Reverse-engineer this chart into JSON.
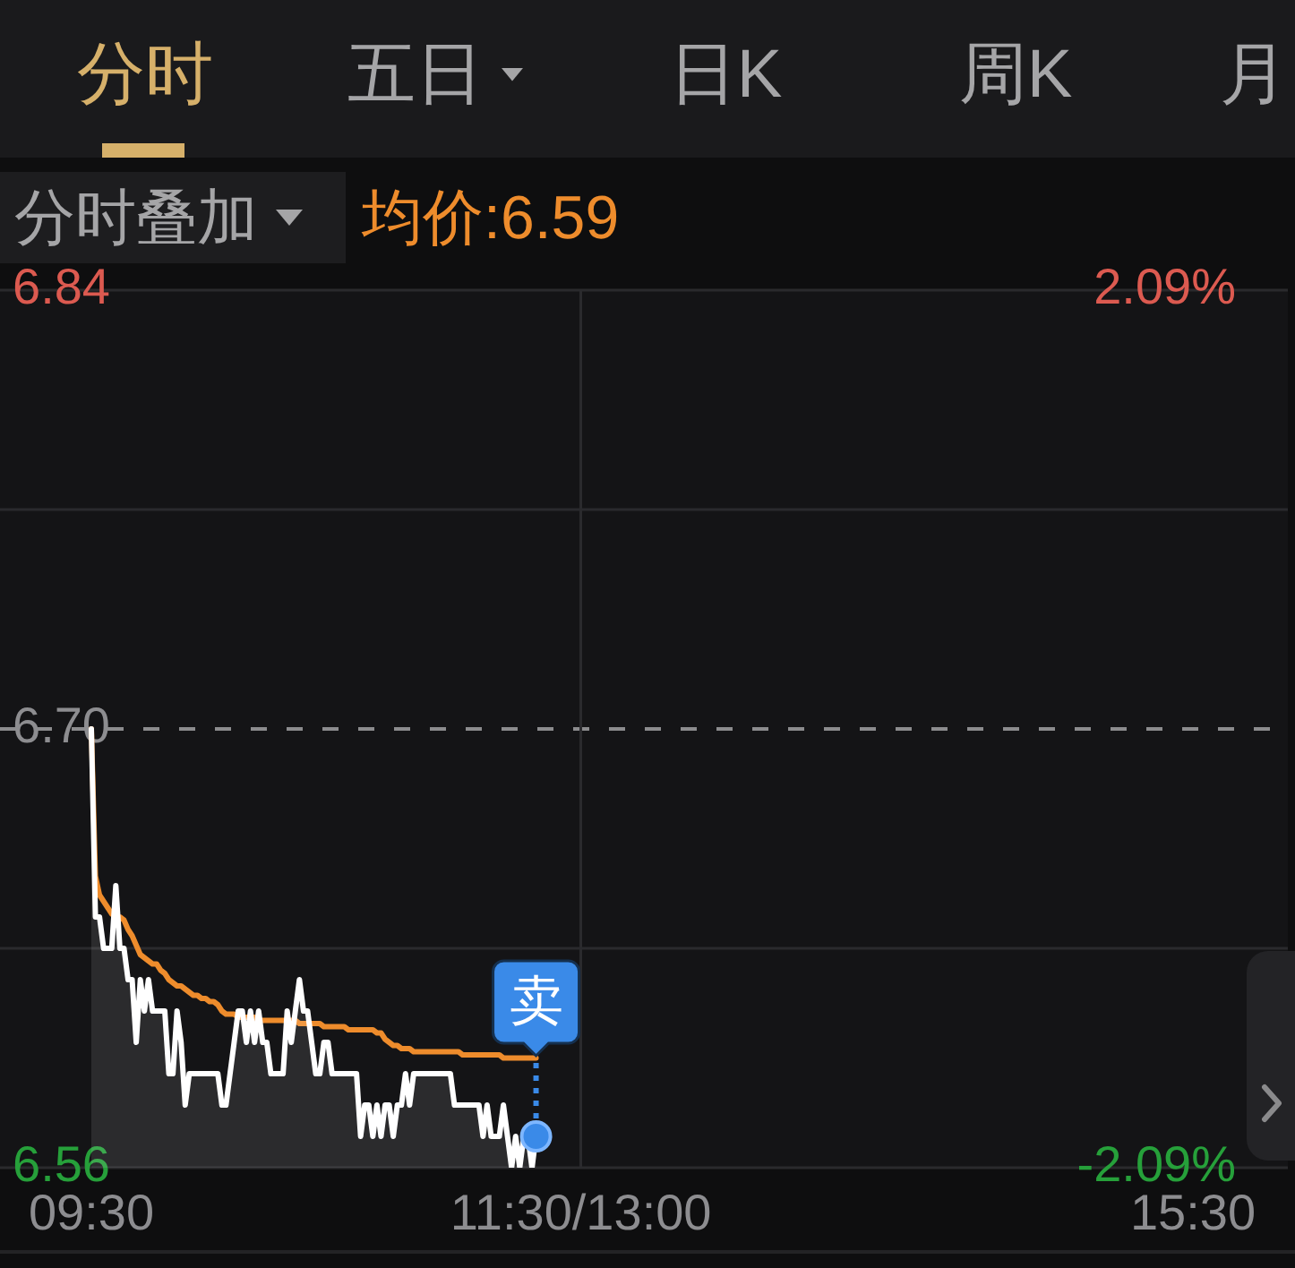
{
  "chart_data": {
    "type": "line",
    "annotations": [
      "分时",
      "五日",
      "日K",
      "周K",
      "月",
      "分时叠加",
      {
        "text": "卖",
        "y": 6.57
      }
    ],
    "categories": [
      "09:30",
      null,
      null,
      null,
      null,
      null,
      null,
      null,
      null,
      null,
      null,
      null,
      null,
      null,
      null,
      null,
      null,
      null,
      null,
      null,
      null,
      null,
      null,
      null,
      null,
      null,
      null,
      null,
      null,
      null,
      null,
      null,
      null,
      null,
      null,
      null,
      null,
      null,
      null,
      null,
      null,
      null,
      null,
      null,
      null,
      null,
      null,
      null,
      null,
      null,
      null,
      null,
      null,
      null,
      null,
      null,
      null,
      null,
      null,
      null,
      null,
      null,
      null,
      null,
      null,
      null,
      null,
      null,
      null,
      null,
      null,
      null,
      null,
      null,
      null,
      null,
      null,
      null,
      null,
      null,
      null,
      null,
      null,
      null,
      null,
      null,
      null,
      null,
      null,
      null,
      null,
      null,
      null,
      null,
      null,
      null,
      null,
      null,
      null,
      null,
      null,
      null,
      null,
      null,
      null,
      null,
      null,
      null,
      null,
      null,
      null,
      null,
      null,
      null,
      null,
      null,
      null,
      null,
      null,
      null,
      "11:30/13:00",
      null,
      null,
      null,
      null,
      null,
      null,
      null,
      null,
      null,
      null,
      null,
      null,
      null,
      null,
      null,
      null,
      null,
      null,
      null,
      null,
      null,
      null,
      null,
      null,
      null,
      null,
      null,
      null,
      null,
      null,
      null,
      null,
      null,
      null,
      null,
      null,
      null,
      null,
      null,
      null,
      null,
      null,
      null,
      null,
      null,
      null,
      null,
      null,
      null,
      null,
      null,
      null,
      null,
      null,
      null,
      null,
      null,
      null,
      null,
      null,
      null,
      null,
      null,
      null,
      null,
      null,
      null,
      null,
      null,
      null,
      null,
      null,
      null,
      null,
      null,
      null,
      null,
      null,
      null,
      null,
      null,
      null,
      null,
      null,
      null,
      null,
      null,
      null,
      null,
      null,
      null,
      null,
      null,
      null,
      null,
      null,
      null,
      null,
      null,
      null,
      null,
      null,
      null,
      null,
      null,
      null,
      null,
      null,
      null,
      null,
      null,
      null,
      null,
      null,
      null,
      null,
      null,
      null,
      null,
      null,
      null,
      null,
      null,
      null,
      null,
      null,
      null,
      null,
      null,
      null,
      null,
      null,
      null,
      null,
      null,
      null,
      null,
      null,
      null,
      null,
      null,
      null,
      null,
      null,
      null,
      null,
      null,
      null,
      null,
      "15:30"
    ],
    "ylim": [
      6.56,
      6.84
    ],
    "yticks": [
      6.56,
      {
        "value": 6.63,
        "label": null
      },
      {
        "value": 6.7,
        "label": "6.70"
      },
      {
        "value": 6.77,
        "label": null
      },
      6.84
    ],
    "y2lim": [
      -2.09,
      2.09
    ],
    "y2ticks": [
      {
        "value": -2.09,
        "label": "-2.09%"
      },
      {
        "value": 2.09,
        "label": "2.09%"
      }
    ],
    "grid": true,
    "legend": "top left",
    "marker": "none",
    "ref_lines": [
      {
        "axis": "y",
        "value": 6.7,
        "color": "#8c8c8e",
        "line_style": "dashed"
      }
    ],
    "series": [
      {
        "type": "area",
        "color": "#ffffff",
        "values": [
          6.7,
          6.64,
          6.64,
          6.63,
          6.63,
          6.63,
          6.65,
          6.63,
          6.63,
          6.62,
          6.62,
          6.6,
          6.62,
          6.61,
          6.62,
          6.61,
          6.61,
          6.61,
          6.61,
          6.59,
          6.59,
          6.61,
          6.6,
          6.58,
          6.59,
          6.59,
          6.59,
          6.59,
          6.59,
          6.59,
          6.59,
          6.59,
          6.58,
          6.58,
          6.59,
          6.6,
          6.61,
          6.61,
          6.6,
          6.61,
          6.6,
          6.61,
          6.6,
          6.6,
          6.59,
          6.59,
          6.59,
          6.59,
          6.61,
          6.6,
          6.61,
          6.62,
          6.61,
          6.61,
          6.6,
          6.59,
          6.59,
          6.6,
          6.6,
          6.59,
          6.59,
          6.59,
          6.59,
          6.59,
          6.59,
          6.59,
          6.57,
          6.58,
          6.58,
          6.57,
          6.58,
          6.57,
          6.58,
          6.58,
          6.57,
          6.58,
          6.58,
          6.59,
          6.58,
          6.59,
          6.59,
          6.59,
          6.59,
          6.59,
          6.59,
          6.59,
          6.59,
          6.59,
          6.59,
          6.58,
          6.58,
          6.58,
          6.58,
          6.58,
          6.58,
          6.58,
          6.57,
          6.58,
          6.57,
          6.57,
          6.57,
          6.58,
          6.57,
          6.56,
          6.57,
          6.56,
          6.57,
          6.57,
          6.56,
          6.57,
          null,
          null,
          null,
          null,
          null,
          null,
          null,
          null,
          null,
          null,
          null,
          null,
          null,
          null,
          null,
          null,
          null,
          null,
          null,
          null,
          null,
          null,
          null,
          null,
          null,
          null,
          null,
          null,
          null,
          null,
          null,
          null,
          null,
          null,
          null,
          null,
          null,
          null,
          null,
          null,
          null,
          null,
          null,
          null,
          null,
          null,
          null,
          null,
          null,
          null,
          null,
          null,
          null,
          null,
          null,
          null,
          null,
          null,
          null,
          null,
          null,
          null,
          null,
          null,
          null,
          null,
          null,
          null,
          null,
          null,
          null,
          null,
          null,
          null,
          null,
          null,
          null,
          null,
          null,
          null,
          null,
          null,
          null,
          null,
          null,
          null,
          null,
          null,
          null,
          null,
          null,
          null,
          null,
          null,
          null,
          null,
          null,
          null,
          null,
          null,
          null,
          null,
          null,
          null,
          null,
          null,
          null,
          null,
          null,
          null,
          null,
          null,
          null,
          null,
          null,
          null,
          null,
          null,
          null,
          null,
          null,
          null,
          null,
          null,
          null,
          null,
          null,
          null,
          null,
          null,
          null,
          null,
          null,
          null,
          null,
          null,
          null,
          null,
          null,
          null,
          null,
          null,
          null,
          null,
          null,
          null,
          null,
          null,
          null,
          null,
          null,
          null,
          null,
          null,
          null,
          null,
          null,
          null,
          null,
          null,
          null
        ]
      },
      {
        "name": "均价:6.59",
        "color": "#ee8c2c",
        "values": [
          6.7,
          6.653,
          6.647,
          6.645,
          6.643,
          6.641,
          6.64,
          6.64,
          6.639,
          6.636,
          6.634,
          6.631,
          6.628,
          6.627,
          6.626,
          6.625,
          6.625,
          6.623,
          6.622,
          6.62,
          6.619,
          6.618,
          6.618,
          6.617,
          6.616,
          6.615,
          6.615,
          6.614,
          6.614,
          6.613,
          6.613,
          6.612,
          6.61,
          6.609,
          6.609,
          6.609,
          6.608,
          6.608,
          6.608,
          6.608,
          6.608,
          6.607,
          6.607,
          6.607,
          6.607,
          6.607,
          6.607,
          6.607,
          6.607,
          6.607,
          6.607,
          6.606,
          6.606,
          6.606,
          6.606,
          6.606,
          6.606,
          6.605,
          6.605,
          6.605,
          6.605,
          6.605,
          6.605,
          6.604,
          6.604,
          6.604,
          6.604,
          6.604,
          6.604,
          6.604,
          6.603,
          6.603,
          6.601,
          6.6,
          6.599,
          6.599,
          6.598,
          6.598,
          6.598,
          6.597,
          6.597,
          6.597,
          6.597,
          6.597,
          6.597,
          6.597,
          6.597,
          6.597,
          6.597,
          6.597,
          6.597,
          6.596,
          6.596,
          6.596,
          6.596,
          6.596,
          6.596,
          6.596,
          6.596,
          6.596,
          6.596,
          6.595,
          6.595,
          6.595,
          6.595,
          6.595,
          6.595,
          6.595,
          6.595,
          6.595,
          null,
          null,
          null,
          null,
          null,
          null,
          null,
          null,
          null,
          null,
          null,
          null,
          null,
          null,
          null,
          null,
          null,
          null,
          null,
          null,
          null,
          null,
          null,
          null,
          null,
          null,
          null,
          null,
          null,
          null,
          null,
          null,
          null,
          null,
          null,
          null,
          null,
          null,
          null,
          null,
          null,
          null,
          null,
          null,
          null,
          null,
          null,
          null,
          null,
          null,
          null,
          null,
          null,
          null,
          null,
          null,
          null,
          null,
          null,
          null,
          null,
          null,
          null,
          null,
          null,
          null,
          null,
          null,
          null,
          null,
          null,
          null,
          null,
          null,
          null,
          null,
          null,
          null,
          null,
          null,
          null,
          null,
          null,
          null,
          null,
          null,
          null,
          null,
          null,
          null,
          null,
          null,
          null,
          null,
          null,
          null,
          null,
          null,
          null,
          null,
          null,
          null,
          null,
          null,
          null,
          null,
          null,
          null,
          null,
          null,
          null,
          null,
          null,
          null,
          null,
          null,
          null,
          null,
          null,
          null,
          null,
          null,
          null,
          null,
          null,
          null,
          null,
          null,
          null,
          null,
          null,
          null,
          null,
          null,
          null,
          null,
          null,
          null,
          null,
          null,
          null,
          null,
          null,
          null,
          null,
          null,
          null,
          null,
          null,
          null,
          null,
          null,
          null,
          null,
          null,
          null,
          null,
          null,
          null,
          null,
          null
        ]
      }
    ]
  }
}
